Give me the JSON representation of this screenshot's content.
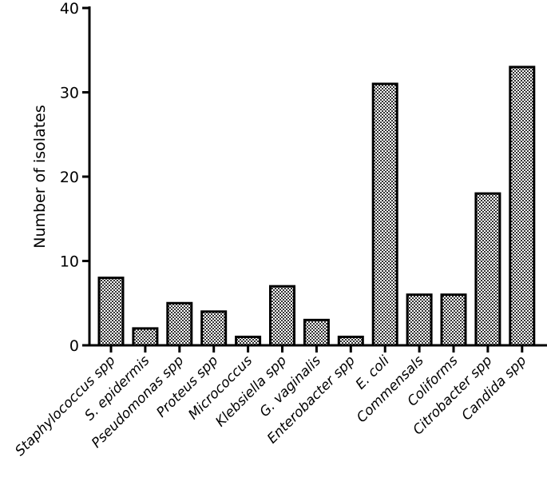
{
  "chart_data": {
    "type": "bar",
    "title": "",
    "xlabel": "",
    "ylabel": "Number of isolates",
    "ylim": [
      0,
      40
    ],
    "yticks": [
      0,
      10,
      20,
      30,
      40
    ],
    "grid": false,
    "bar_fill": "checkered gray",
    "bar_stroke": "#000000",
    "categories": [
      "Staphylococcus spp",
      "S. epidermis",
      "Pseudomonas spp",
      "Proteus spp",
      "Micrococcus",
      "Klebsiella spp",
      "G. vaginalis",
      "Enterobacter spp",
      "E. coli",
      "Commensals",
      "Coliforms",
      "Citrobacter spp",
      "Candida spp"
    ],
    "values": [
      8,
      2,
      5,
      4,
      1,
      7,
      3,
      1,
      31,
      6,
      6,
      18,
      33
    ]
  }
}
